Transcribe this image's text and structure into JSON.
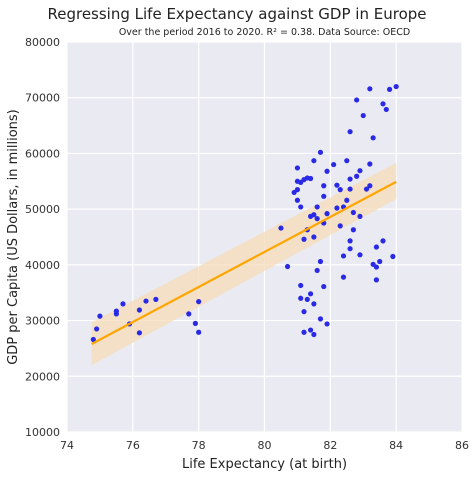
{
  "chart_data": {
    "type": "scatter",
    "title": "Regressing Life Expectancy against GDP in Europe",
    "subtitle": "Over the period 2016 to 2020. R² =  0.38. Data Source: OECD",
    "xlabel": "Life Expectancy (at birth)",
    "ylabel": "GDP per Capita (US Dollars, in millions)",
    "xlim": [
      74,
      86
    ],
    "ylim": [
      10000,
      80000
    ],
    "xticks": [
      74,
      76,
      78,
      80,
      82,
      84,
      86
    ],
    "yticks": [
      10000,
      20000,
      30000,
      40000,
      50000,
      60000,
      70000,
      80000
    ],
    "xtick_labels": [
      "74",
      "76",
      "78",
      "80",
      "82",
      "84",
      "86"
    ],
    "ytick_labels": [
      "10000",
      "20000",
      "30000",
      "40000",
      "50000",
      "60000",
      "70000",
      "80000"
    ],
    "grid": true,
    "colors": {
      "points": "#2a2ae6",
      "fit_line": "#ffa500",
      "band": "#f5dcb8",
      "background": "#eaeaf2"
    },
    "points": [
      {
        "x": 74.8,
        "y": 26600
      },
      {
        "x": 74.9,
        "y": 28500
      },
      {
        "x": 75.0,
        "y": 30800
      },
      {
        "x": 75.5,
        "y": 31700
      },
      {
        "x": 75.5,
        "y": 31200
      },
      {
        "x": 75.7,
        "y": 33000
      },
      {
        "x": 75.9,
        "y": 29400
      },
      {
        "x": 76.2,
        "y": 31900
      },
      {
        "x": 76.2,
        "y": 27800
      },
      {
        "x": 76.4,
        "y": 33500
      },
      {
        "x": 76.7,
        "y": 33800
      },
      {
        "x": 77.7,
        "y": 31200
      },
      {
        "x": 77.9,
        "y": 29500
      },
      {
        "x": 78.0,
        "y": 33400
      },
      {
        "x": 78.0,
        "y": 27900
      },
      {
        "x": 80.5,
        "y": 46600
      },
      {
        "x": 80.7,
        "y": 39700
      },
      {
        "x": 81.0,
        "y": 57400
      },
      {
        "x": 81.0,
        "y": 53500
      },
      {
        "x": 80.9,
        "y": 53000
      },
      {
        "x": 81.0,
        "y": 51600
      },
      {
        "x": 81.0,
        "y": 55000
      },
      {
        "x": 81.1,
        "y": 54800
      },
      {
        "x": 81.2,
        "y": 55300
      },
      {
        "x": 81.3,
        "y": 55600
      },
      {
        "x": 81.4,
        "y": 55500
      },
      {
        "x": 81.1,
        "y": 50400
      },
      {
        "x": 81.3,
        "y": 46300
      },
      {
        "x": 81.2,
        "y": 44600
      },
      {
        "x": 81.4,
        "y": 48700
      },
      {
        "x": 81.5,
        "y": 49000
      },
      {
        "x": 81.5,
        "y": 45000
      },
      {
        "x": 81.6,
        "y": 48300
      },
      {
        "x": 81.5,
        "y": 58700
      },
      {
        "x": 81.7,
        "y": 60200
      },
      {
        "x": 81.8,
        "y": 54200
      },
      {
        "x": 81.8,
        "y": 52300
      },
      {
        "x": 81.9,
        "y": 56800
      },
      {
        "x": 81.8,
        "y": 47500
      },
      {
        "x": 81.9,
        "y": 49200
      },
      {
        "x": 81.6,
        "y": 50400
      },
      {
        "x": 81.1,
        "y": 36300
      },
      {
        "x": 81.1,
        "y": 34000
      },
      {
        "x": 81.3,
        "y": 33800
      },
      {
        "x": 81.4,
        "y": 34800
      },
      {
        "x": 81.5,
        "y": 33000
      },
      {
        "x": 81.2,
        "y": 31600
      },
      {
        "x": 81.2,
        "y": 27900
      },
      {
        "x": 81.4,
        "y": 28300
      },
      {
        "x": 81.5,
        "y": 27500
      },
      {
        "x": 81.7,
        "y": 30300
      },
      {
        "x": 81.9,
        "y": 29400
      },
      {
        "x": 81.6,
        "y": 39000
      },
      {
        "x": 81.7,
        "y": 40600
      },
      {
        "x": 81.8,
        "y": 36100
      },
      {
        "x": 82.1,
        "y": 58000
      },
      {
        "x": 82.2,
        "y": 54300
      },
      {
        "x": 82.3,
        "y": 53500
      },
      {
        "x": 82.4,
        "y": 50400
      },
      {
        "x": 82.2,
        "y": 50200
      },
      {
        "x": 82.3,
        "y": 47000
      },
      {
        "x": 82.5,
        "y": 58700
      },
      {
        "x": 82.6,
        "y": 55400
      },
      {
        "x": 82.5,
        "y": 51600
      },
      {
        "x": 82.6,
        "y": 53600
      },
      {
        "x": 82.7,
        "y": 49400
      },
      {
        "x": 82.8,
        "y": 55900
      },
      {
        "x": 82.4,
        "y": 41600
      },
      {
        "x": 82.6,
        "y": 44300
      },
      {
        "x": 82.7,
        "y": 46300
      },
      {
        "x": 82.6,
        "y": 42900
      },
      {
        "x": 82.4,
        "y": 37800
      },
      {
        "x": 82.9,
        "y": 48700
      },
      {
        "x": 82.9,
        "y": 56900
      },
      {
        "x": 82.9,
        "y": 41800
      },
      {
        "x": 82.6,
        "y": 63900
      },
      {
        "x": 82.8,
        "y": 69600
      },
      {
        "x": 83.0,
        "y": 66800
      },
      {
        "x": 83.2,
        "y": 71600
      },
      {
        "x": 83.3,
        "y": 62800
      },
      {
        "x": 83.2,
        "y": 58100
      },
      {
        "x": 83.1,
        "y": 53600
      },
      {
        "x": 83.2,
        "y": 54200
      },
      {
        "x": 83.3,
        "y": 40100
      },
      {
        "x": 83.4,
        "y": 39600
      },
      {
        "x": 83.5,
        "y": 40600
      },
      {
        "x": 83.4,
        "y": 43200
      },
      {
        "x": 83.6,
        "y": 44300
      },
      {
        "x": 83.4,
        "y": 37300
      },
      {
        "x": 83.6,
        "y": 68900
      },
      {
        "x": 83.7,
        "y": 67900
      },
      {
        "x": 83.8,
        "y": 71500
      },
      {
        "x": 84.0,
        "y": 72000
      },
      {
        "x": 83.9,
        "y": 41500
      }
    ],
    "fit": {
      "x": [
        74.75,
        84.0
      ],
      "y": [
        25800,
        54900
      ],
      "ci_lower": [
        22000,
        51800
      ],
      "ci_upper": [
        29700,
        58300
      ]
    }
  }
}
